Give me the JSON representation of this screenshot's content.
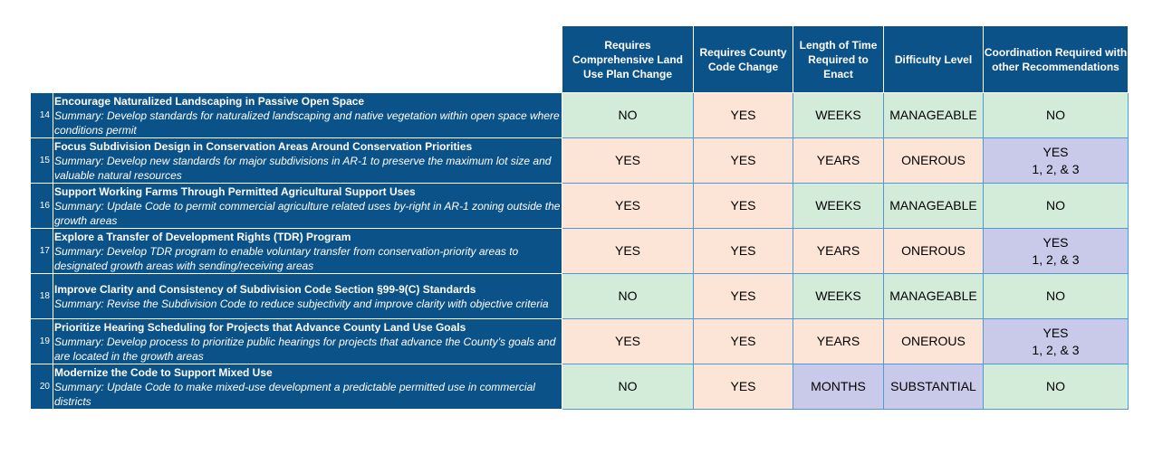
{
  "colors": {
    "header_bg": "#0b5289",
    "green": "#d3ecda",
    "orange": "#fce4d6",
    "purple": "#c9c9e9"
  },
  "headers": {
    "comp_plan": "Requires Comprehensive Land Use Plan Change",
    "county_code": "Requires County Code Change",
    "time": "Length of Time Required to Enact",
    "difficulty": "Difficulty Level",
    "coordination": "Coordination Required with other Recommendations"
  },
  "rows": [
    {
      "num": "14",
      "title": "Encourage Naturalized Landscaping in Passive Open Space",
      "summary": "Summary: Develop standards for naturalized landscaping and native vegetation within open space where conditions permit",
      "comp_plan": "NO",
      "county_code": "YES",
      "time": "WEEKS",
      "difficulty": "MANAGEABLE",
      "coord_line1": "NO",
      "coord_line2": ""
    },
    {
      "num": "15",
      "title": "Focus Subdivision Design in Conservation Areas Around Conservation Priorities",
      "summary": "Summary: Develop new standards for major subdivisions in AR-1 to preserve the maximum lot size and valuable natural resources",
      "comp_plan": "YES",
      "county_code": "YES",
      "time": "YEARS",
      "difficulty": "ONEROUS",
      "coord_line1": "YES",
      "coord_line2": "1, 2, & 3"
    },
    {
      "num": "16",
      "title": "Support Working Farms Through Permitted Agricultural Support Uses",
      "summary": "Summary: Update Code to permit commercial agriculture related uses by-right in AR-1 zoning outside the growth areas",
      "comp_plan": "YES",
      "county_code": "YES",
      "time": "WEEKS",
      "difficulty": "MANAGEABLE",
      "coord_line1": "NO",
      "coord_line2": ""
    },
    {
      "num": "17",
      "title": "Explore a Transfer of Development Rights (TDR) Program",
      "summary": "Summary: Develop TDR program to enable voluntary transfer from conservation-priority areas to designated growth areas with sending/receiving areas",
      "comp_plan": "YES",
      "county_code": "YES",
      "time": "YEARS",
      "difficulty": "ONEROUS",
      "coord_line1": "YES",
      "coord_line2": "1, 2, & 3"
    },
    {
      "num": "18",
      "title": "Improve Clarity and Consistency of Subdivision Code Section §99-9(C) Standards",
      "summary": "Summary: Revise the Subdivision Code to reduce subjectivity and improve clarity with objective criteria",
      "comp_plan": "NO",
      "county_code": "YES",
      "time": "WEEKS",
      "difficulty": "MANAGEABLE",
      "coord_line1": "NO",
      "coord_line2": ""
    },
    {
      "num": "19",
      "title": "Prioritize Hearing Scheduling for Projects that Advance County Land Use Goals",
      "summary": "Summary: Develop process to prioritize public hearings for projects that advance the County’s goals and are located in the growth areas",
      "comp_plan": "YES",
      "county_code": "YES",
      "time": "YEARS",
      "difficulty": "ONEROUS",
      "coord_line1": "YES",
      "coord_line2": "1, 2, & 3"
    },
    {
      "num": "20",
      "title": "Modernize the Code to Support Mixed Use",
      "summary": "Summary: Update Code to make mixed-use development a predictable permitted use in commercial districts",
      "comp_plan": "NO",
      "county_code": "YES",
      "time": "MONTHS",
      "difficulty": "SUBSTANTIAL",
      "coord_line1": "NO",
      "coord_line2": ""
    }
  ]
}
